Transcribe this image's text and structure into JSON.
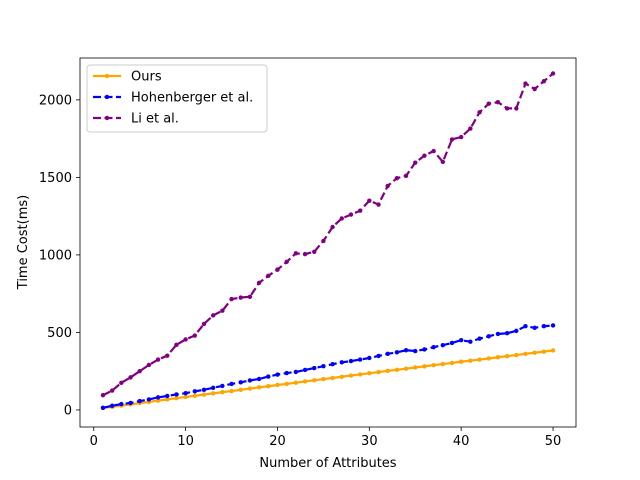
{
  "chart_data": {
    "type": "line",
    "xlabel": "Number of Attributes",
    "ylabel": "Time Cost(ms)",
    "xlim": [
      -1.5,
      52.5
    ],
    "ylim": [
      -110,
      2270
    ],
    "xticks": [
      0,
      10,
      20,
      30,
      40,
      50
    ],
    "yticks": [
      0,
      500,
      1000,
      1500,
      2000
    ],
    "grid": false,
    "legend_position": "top-left",
    "x": [
      1,
      2,
      3,
      4,
      5,
      6,
      7,
      8,
      9,
      10,
      11,
      12,
      13,
      14,
      15,
      16,
      17,
      18,
      19,
      20,
      21,
      22,
      23,
      24,
      25,
      26,
      27,
      28,
      29,
      30,
      31,
      32,
      33,
      34,
      35,
      36,
      37,
      38,
      39,
      40,
      41,
      42,
      43,
      44,
      45,
      46,
      47,
      48,
      49,
      50
    ],
    "series": [
      {
        "name": "Ours",
        "color": "#ffa500",
        "dash": "solid",
        "values": [
          12,
          20,
          28,
          36,
          44,
          52,
          60,
          68,
          76,
          84,
          91,
          99,
          107,
          115,
          122,
          130,
          138,
          146,
          153,
          161,
          168,
          176,
          184,
          191,
          199,
          206,
          214,
          222,
          229,
          237,
          244,
          252,
          259,
          266,
          274,
          281,
          289,
          296,
          303,
          311,
          318,
          325,
          332,
          340,
          347,
          354,
          362,
          369,
          376,
          384
        ]
      },
      {
        "name": "Hohenberger et al.",
        "color": "#0000ff",
        "dash": "dashed",
        "values": [
          14,
          27,
          38,
          45,
          57,
          68,
          81,
          90,
          100,
          108,
          120,
          130,
          143,
          155,
          168,
          178,
          190,
          200,
          215,
          228,
          238,
          245,
          258,
          270,
          282,
          295,
          307,
          315,
          325,
          335,
          348,
          362,
          372,
          385,
          380,
          390,
          405,
          418,
          432,
          450,
          440,
          460,
          475,
          490,
          495,
          510,
          540,
          530,
          540,
          545
        ]
      },
      {
        "name": "Li et al.",
        "color": "#800080",
        "dash": "dashed",
        "values": [
          95,
          125,
          175,
          210,
          250,
          290,
          325,
          350,
          420,
          455,
          480,
          555,
          610,
          640,
          715,
          725,
          730,
          820,
          865,
          905,
          955,
          1010,
          1005,
          1020,
          1090,
          1180,
          1235,
          1260,
          1285,
          1350,
          1325,
          1445,
          1495,
          1510,
          1595,
          1640,
          1670,
          1600,
          1745,
          1760,
          1815,
          1920,
          1975,
          1985,
          1945,
          1945,
          2105,
          2070,
          2120,
          2170
        ]
      }
    ]
  }
}
